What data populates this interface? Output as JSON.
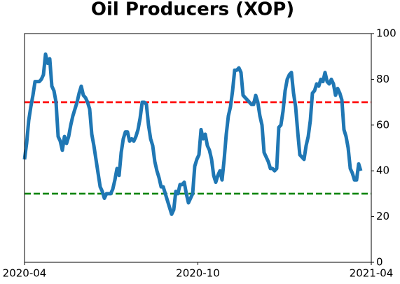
{
  "chart_data": {
    "type": "line",
    "title": "Oil Producers (XOP)",
    "xlim": [
      "2020-04",
      "2021-04"
    ],
    "xticks": [
      "2020-04",
      "2020-10",
      "2021-04"
    ],
    "ylim": [
      0,
      100
    ],
    "yticks": [
      0,
      20,
      40,
      60,
      80,
      100
    ],
    "hlines": [
      {
        "value": 70,
        "color": "#ff0000"
      },
      {
        "value": 30,
        "color": "#008000"
      }
    ],
    "series": [
      {
        "color": "#1f77b4",
        "values": [
          45,
          52,
          62,
          68,
          73,
          79,
          79,
          79,
          80,
          82,
          91,
          87,
          89,
          77,
          75,
          70,
          55,
          53,
          49,
          55,
          52,
          55,
          60,
          64,
          67,
          70,
          74,
          77,
          73,
          72,
          70,
          67,
          56,
          51,
          45,
          39,
          33,
          31,
          28,
          30,
          30,
          30,
          32,
          36,
          41,
          38,
          48,
          54,
          57,
          57,
          53,
          54,
          53,
          55,
          58,
          63,
          70,
          70,
          69,
          60,
          54,
          51,
          44,
          40,
          37,
          33,
          33,
          30,
          27,
          24,
          21,
          23,
          31,
          30,
          34,
          34,
          35,
          30,
          26,
          28,
          30,
          42,
          45,
          47,
          58,
          54,
          56,
          51,
          49,
          45,
          38,
          35,
          38,
          40,
          36,
          45,
          56,
          64,
          68,
          75,
          84,
          84,
          85,
          83,
          73,
          72,
          71,
          70,
          69,
          69,
          73,
          70,
          64,
          60,
          48,
          46,
          44,
          41,
          41,
          40,
          41,
          59,
          60,
          66,
          75,
          80,
          82,
          83,
          74,
          68,
          57,
          47,
          46,
          45,
          51,
          55,
          62,
          74,
          75,
          78,
          77,
          80,
          79,
          83,
          79,
          78,
          80,
          78,
          73,
          76,
          74,
          71,
          58,
          55,
          50,
          41,
          39,
          36,
          36,
          43,
          40
        ]
      }
    ]
  }
}
